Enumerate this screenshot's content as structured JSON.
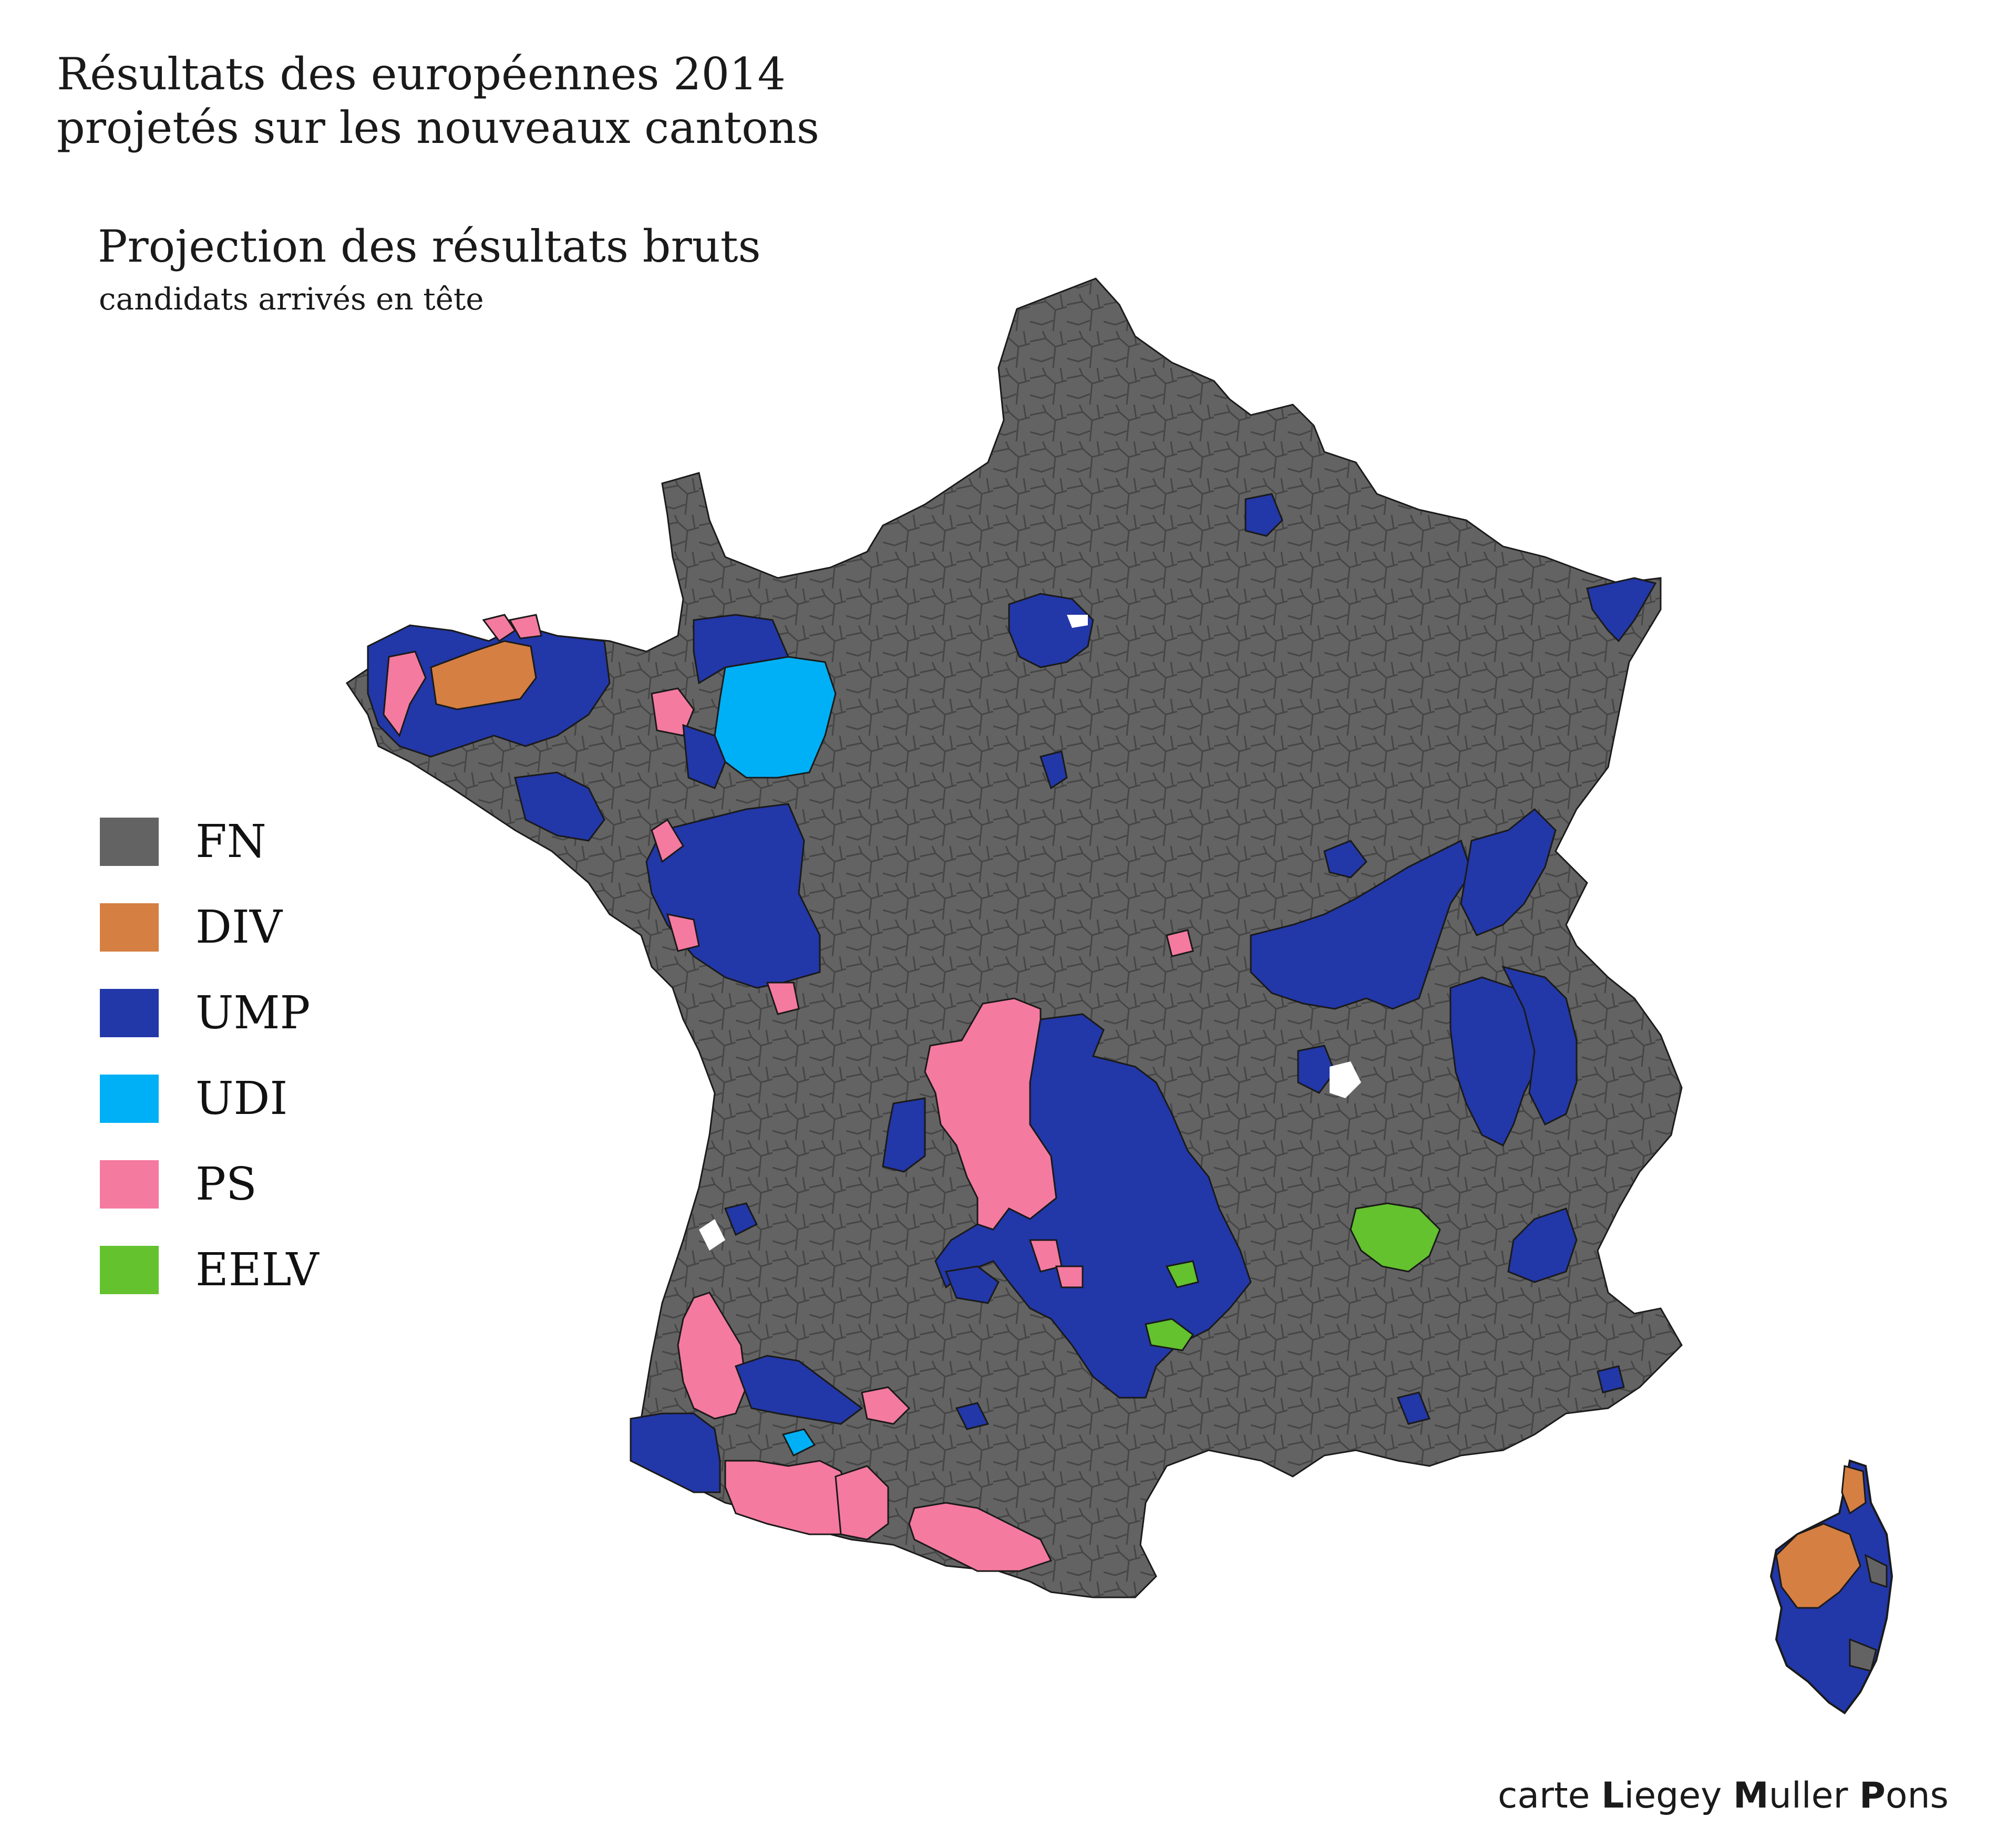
{
  "header": {
    "title_line1": "Résultats des européennes 2014",
    "title_line2": "projetés sur les nouveaux cantons",
    "subtitle": "Projection des résultats bruts",
    "caption": "candidats arrivés en tête"
  },
  "legend": {
    "items": [
      {
        "label": "FN",
        "color": "#636363"
      },
      {
        "label": "DIV",
        "color": "#d57f42"
      },
      {
        "label": "UMP",
        "color": "#2237a8"
      },
      {
        "label": "UDI",
        "color": "#00b0f6"
      },
      {
        "label": "PS",
        "color": "#f57aa0"
      },
      {
        "label": "EELV",
        "color": "#63c22e"
      }
    ]
  },
  "credit": {
    "prefix": "carte ",
    "w1_cap": "L",
    "w1_rest": "iegey ",
    "w2_cap": "M",
    "w2_rest": "uller ",
    "w3_cap": "P",
    "w3_rest": "ons"
  }
}
